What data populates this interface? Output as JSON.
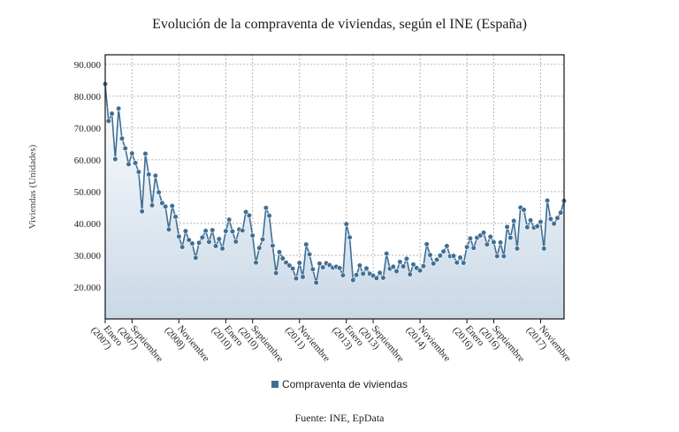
{
  "chart_data": {
    "type": "area",
    "title": "Evolución de la compraventa de viviendas, según el INE (España)",
    "ylabel": "Viviendas (Unidades)",
    "xlabel": "",
    "ylim": [
      10000,
      93000
    ],
    "yticks": [
      20000,
      30000,
      40000,
      50000,
      60000,
      70000,
      80000,
      90000
    ],
    "ytick_labels": [
      "20.000",
      "30.000",
      "40.000",
      "50.000",
      "60.000",
      "70.000",
      "80.000",
      "90.000"
    ],
    "grid": true,
    "legend_position": "bottom",
    "x_start": "Enero 2007",
    "x_ticks": [
      {
        "index": 0,
        "label": [
          "Enero",
          "(2007)"
        ]
      },
      {
        "index": 8,
        "label": [
          "Septiembre",
          "(2007)"
        ]
      },
      {
        "index": 22,
        "label": [
          "Noviembre",
          "(2008)"
        ]
      },
      {
        "index": 36,
        "label": [
          "Enero",
          "(2010)"
        ]
      },
      {
        "index": 44,
        "label": [
          "Septiembre",
          "(2010)"
        ]
      },
      {
        "index": 58,
        "label": [
          "Noviembre",
          "(2011)"
        ]
      },
      {
        "index": 72,
        "label": [
          "Enero",
          "(2013)"
        ]
      },
      {
        "index": 80,
        "label": [
          "Septiembre",
          "(2013)"
        ]
      },
      {
        "index": 94,
        "label": [
          "Noviembre",
          "(2014)"
        ]
      },
      {
        "index": 108,
        "label": [
          "Enero",
          "(2016)"
        ]
      },
      {
        "index": 116,
        "label": [
          "Septiembre",
          "(2016)"
        ]
      },
      {
        "index": 130,
        "label": [
          "Noviembre",
          "(2017)"
        ]
      }
    ],
    "series": [
      {
        "name": "Compraventa de viviendas",
        "color": "#3f6f96",
        "values": [
          83800,
          72200,
          74500,
          60200,
          76100,
          66700,
          63600,
          58600,
          62000,
          59000,
          56200,
          43800,
          61900,
          55400,
          45700,
          55000,
          49800,
          46400,
          45300,
          38100,
          45500,
          42100,
          35900,
          32600,
          37600,
          34800,
          33700,
          29200,
          33900,
          35600,
          37700,
          34200,
          37900,
          32900,
          35100,
          32100,
          37600,
          41200,
          37500,
          34300,
          38100,
          37800,
          43600,
          42500,
          36200,
          27700,
          32300,
          35000,
          44900,
          42400,
          33000,
          24400,
          31000,
          29000,
          27700,
          26800,
          25800,
          22700,
          27600,
          23200,
          33400,
          30300,
          25600,
          21400,
          27400,
          26200,
          27500,
          26900,
          26100,
          26400,
          26000,
          23700,
          39800,
          35600,
          22200,
          23800,
          26800,
          24200,
          25900,
          24200,
          23600,
          22800,
          24500,
          22900,
          30500,
          25800,
          26400,
          25000,
          27900,
          26500,
          28900,
          24000,
          27100,
          26000,
          25200,
          26600,
          33500,
          30100,
          27400,
          28600,
          29900,
          31200,
          32900,
          29700,
          29800,
          27700,
          29300,
          27600,
          32600,
          35300,
          32300,
          35500,
          36200,
          37100,
          33400,
          35800,
          34100,
          29700,
          34000,
          29700,
          38900,
          35500,
          40800,
          32100,
          45000,
          44300,
          38800,
          41000,
          38700,
          39100,
          40500,
          32100,
          47200,
          41400,
          39900,
          41700,
          43400,
          47100
        ]
      }
    ]
  },
  "source_text": "Fuente: INE, EpData"
}
